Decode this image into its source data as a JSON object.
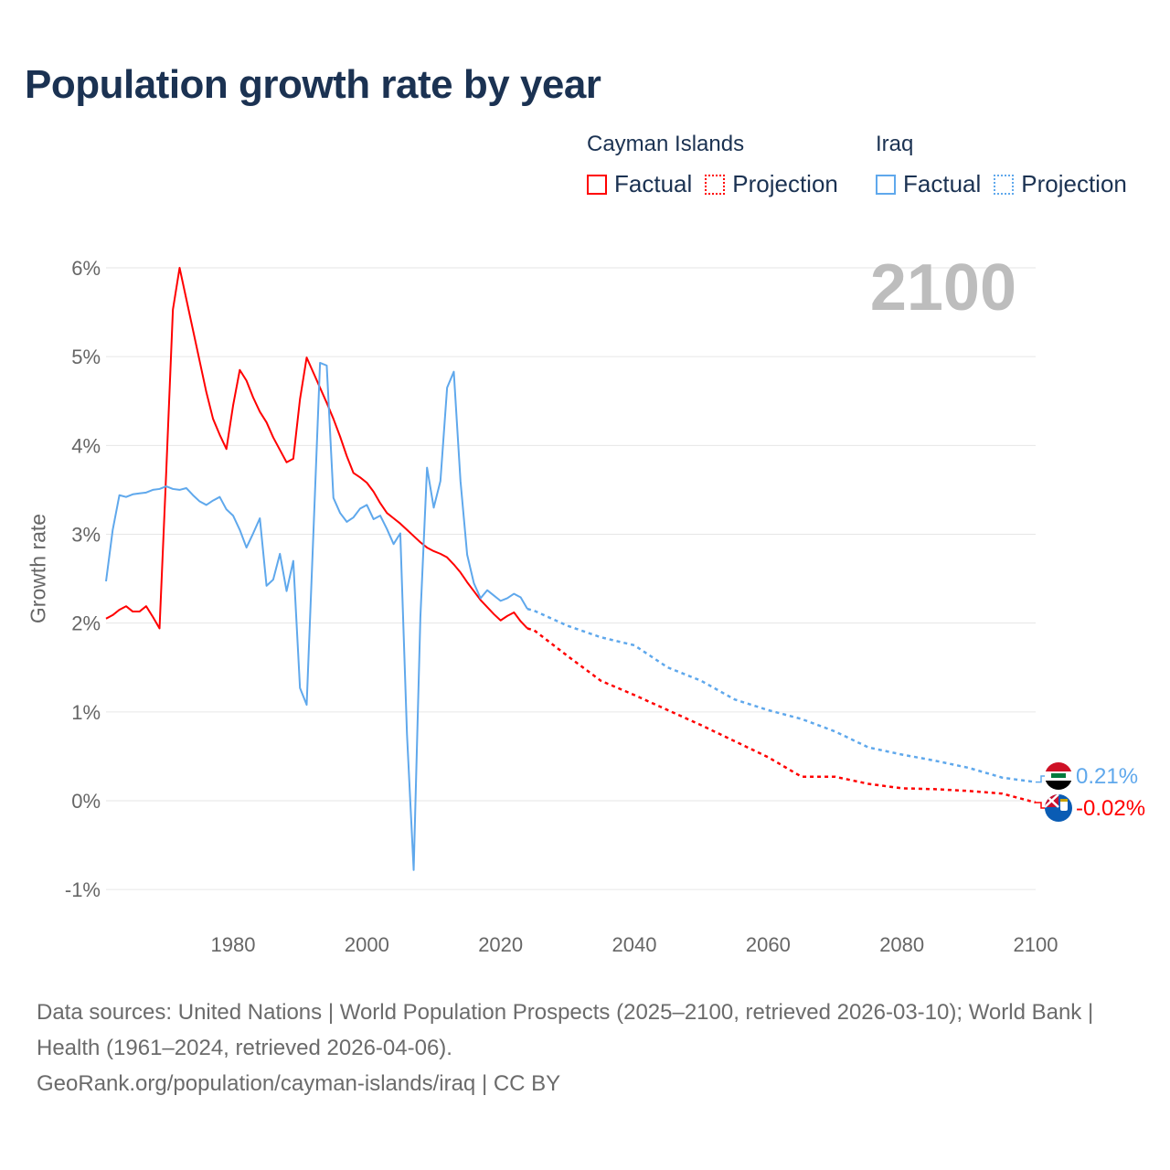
{
  "title": "Population growth rate by year",
  "current_year_label": "2100",
  "legend": {
    "groups": [
      {
        "name": "Cayman Islands",
        "color": "#ff0000",
        "factual_label": "Factual",
        "projection_label": "Projection"
      },
      {
        "name": "Iraq",
        "color": "#5fa8ec",
        "factual_label": "Factual",
        "projection_label": "Projection"
      }
    ]
  },
  "footer": {
    "sources": "Data sources: United Nations | World Population Prospects (2025–2100, retrieved 2026-03-10); World Bank | Health (1961–2024, retrieved 2026-04-06).",
    "credit": "GeoRank.org/population/cayman-islands/iraq | CC BY"
  },
  "chart_data": {
    "type": "line",
    "title": "Population growth rate by year",
    "xlabel": "",
    "ylabel": "Growth rate",
    "xlim": [
      1961,
      2100
    ],
    "ylim": [
      -1,
      6
    ],
    "x_ticks": [
      1980,
      2000,
      2020,
      2040,
      2060,
      2080,
      2100
    ],
    "y_ticks": [
      -1,
      0,
      1,
      2,
      3,
      4,
      5,
      6
    ],
    "y_tick_labels": [
      "-1%",
      "0%",
      "1%",
      "2%",
      "3%",
      "4%",
      "5%",
      "6%"
    ],
    "grid": true,
    "legend_position": "top-right",
    "series": [
      {
        "name": "Cayman Islands",
        "color": "#ff0000",
        "end_label": "-0.02%",
        "flag": "cayman-islands-flag",
        "factual": {
          "start_year": 1961,
          "values": [
            2.05,
            2.09,
            2.15,
            2.19,
            2.13,
            2.13,
            2.19,
            2.07,
            1.94,
            3.7,
            5.53,
            6.0,
            5.65,
            5.3,
            4.95,
            4.6,
            4.3,
            4.12,
            3.96,
            4.45,
            4.85,
            4.73,
            4.54,
            4.38,
            4.26,
            4.09,
            3.95,
            3.81,
            3.85,
            4.52,
            4.99,
            4.82,
            4.65,
            4.48,
            4.3,
            4.1,
            3.88,
            3.69,
            3.64,
            3.58,
            3.48,
            3.35,
            3.24,
            3.18,
            3.12,
            3.05,
            2.98,
            2.91,
            2.85,
            2.81,
            2.78,
            2.74,
            2.66,
            2.57,
            2.46,
            2.36,
            2.26,
            2.18,
            2.1,
            2.03,
            2.08,
            2.12,
            2.02,
            1.94
          ]
        },
        "projection": {
          "years": [
            2025,
            2030,
            2035,
            2040,
            2045,
            2050,
            2055,
            2060,
            2065,
            2070,
            2075,
            2080,
            2085,
            2090,
            2095,
            2100
          ],
          "values": [
            1.92,
            1.63,
            1.35,
            1.19,
            1.02,
            0.85,
            0.67,
            0.49,
            0.27,
            0.27,
            0.19,
            0.14,
            0.13,
            0.11,
            0.08,
            -0.02
          ]
        }
      },
      {
        "name": "Iraq",
        "color": "#5fa8ec",
        "end_label": "0.21%",
        "flag": "iraq-flag",
        "factual": {
          "start_year": 1961,
          "values": [
            2.47,
            3.05,
            3.44,
            3.42,
            3.45,
            3.46,
            3.47,
            3.5,
            3.51,
            3.54,
            3.51,
            3.5,
            3.52,
            3.44,
            3.37,
            3.33,
            3.38,
            3.42,
            3.28,
            3.21,
            3.05,
            2.85,
            3.01,
            3.18,
            2.42,
            2.49,
            2.78,
            2.36,
            2.7,
            1.27,
            1.08,
            3.0,
            4.93,
            4.9,
            3.41,
            3.24,
            3.14,
            3.19,
            3.29,
            3.33,
            3.17,
            3.21,
            3.06,
            2.89,
            3.01,
            0.75,
            -0.78,
            2.06,
            3.75,
            3.3,
            3.6,
            4.65,
            4.83,
            3.6,
            2.77,
            2.45,
            2.28,
            2.37,
            2.31,
            2.25,
            2.28,
            2.33,
            2.29,
            2.16
          ]
        },
        "projection": {
          "years": [
            2025,
            2030,
            2035,
            2040,
            2045,
            2050,
            2055,
            2060,
            2065,
            2070,
            2075,
            2080,
            2085,
            2090,
            2095,
            2100
          ],
          "values": [
            2.14,
            1.97,
            1.84,
            1.75,
            1.5,
            1.35,
            1.14,
            1.02,
            0.92,
            0.78,
            0.6,
            0.52,
            0.45,
            0.37,
            0.26,
            0.21
          ]
        }
      }
    ]
  }
}
